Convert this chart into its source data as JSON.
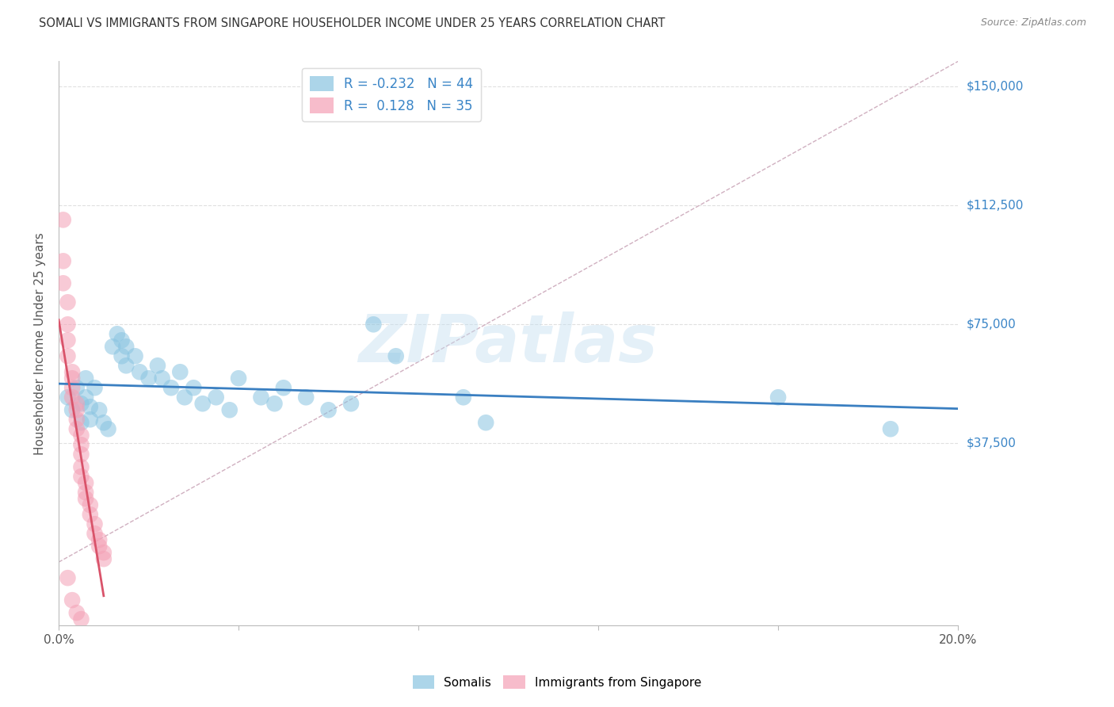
{
  "title": "SOMALI VS IMMIGRANTS FROM SINGAPORE HOUSEHOLDER INCOME UNDER 25 YEARS CORRELATION CHART",
  "source": "Source: ZipAtlas.com",
  "ylabel": "Householder Income Under 25 years",
  "xlim": [
    0,
    0.2
  ],
  "ylim": [
    -20000,
    158000
  ],
  "yticks": [
    37500,
    75000,
    112500,
    150000
  ],
  "ytick_labels": [
    "$37,500",
    "$75,000",
    "$112,500",
    "$150,000"
  ],
  "xticks": [
    0.0,
    0.04,
    0.08,
    0.12,
    0.16,
    0.2
  ],
  "xtick_labels": [
    "0.0%",
    "",
    "",
    "",
    "",
    "20.0%"
  ],
  "background_color": "#ffffff",
  "grid_color": "#e0e0e0",
  "watermark": "ZIPatlas",
  "blue_color": "#89c4e1",
  "pink_color": "#f4a0b5",
  "blue_line_color": "#3a7fc1",
  "pink_line_color": "#d9536a",
  "dashed_line_color": "#d0b0c0",
  "somali_R": -0.232,
  "singapore_R": 0.128,
  "somali_N": 44,
  "singapore_N": 35,
  "somali_points": [
    [
      0.002,
      52000
    ],
    [
      0.003,
      48000
    ],
    [
      0.004,
      55000
    ],
    [
      0.005,
      50000
    ],
    [
      0.005,
      44000
    ],
    [
      0.006,
      58000
    ],
    [
      0.006,
      52000
    ],
    [
      0.007,
      49000
    ],
    [
      0.007,
      45000
    ],
    [
      0.008,
      55000
    ],
    [
      0.009,
      48000
    ],
    [
      0.01,
      44000
    ],
    [
      0.011,
      42000
    ],
    [
      0.012,
      68000
    ],
    [
      0.013,
      72000
    ],
    [
      0.014,
      70000
    ],
    [
      0.014,
      65000
    ],
    [
      0.015,
      68000
    ],
    [
      0.015,
      62000
    ],
    [
      0.017,
      65000
    ],
    [
      0.018,
      60000
    ],
    [
      0.02,
      58000
    ],
    [
      0.022,
      62000
    ],
    [
      0.023,
      58000
    ],
    [
      0.025,
      55000
    ],
    [
      0.027,
      60000
    ],
    [
      0.028,
      52000
    ],
    [
      0.03,
      55000
    ],
    [
      0.032,
      50000
    ],
    [
      0.035,
      52000
    ],
    [
      0.038,
      48000
    ],
    [
      0.04,
      58000
    ],
    [
      0.045,
      52000
    ],
    [
      0.048,
      50000
    ],
    [
      0.05,
      55000
    ],
    [
      0.055,
      52000
    ],
    [
      0.06,
      48000
    ],
    [
      0.065,
      50000
    ],
    [
      0.07,
      75000
    ],
    [
      0.075,
      65000
    ],
    [
      0.09,
      52000
    ],
    [
      0.095,
      44000
    ],
    [
      0.16,
      52000
    ],
    [
      0.185,
      42000
    ]
  ],
  "singapore_points": [
    [
      0.001,
      108000
    ],
    [
      0.001,
      95000
    ],
    [
      0.001,
      88000
    ],
    [
      0.002,
      82000
    ],
    [
      0.002,
      75000
    ],
    [
      0.002,
      70000
    ],
    [
      0.002,
      65000
    ],
    [
      0.003,
      60000
    ],
    [
      0.003,
      58000
    ],
    [
      0.003,
      55000
    ],
    [
      0.003,
      52000
    ],
    [
      0.004,
      50000
    ],
    [
      0.004,
      48000
    ],
    [
      0.004,
      45000
    ],
    [
      0.004,
      42000
    ],
    [
      0.005,
      40000
    ],
    [
      0.005,
      37000
    ],
    [
      0.005,
      34000
    ],
    [
      0.005,
      30000
    ],
    [
      0.005,
      27000
    ],
    [
      0.006,
      25000
    ],
    [
      0.006,
      22000
    ],
    [
      0.006,
      20000
    ],
    [
      0.007,
      18000
    ],
    [
      0.007,
      15000
    ],
    [
      0.008,
      12000
    ],
    [
      0.008,
      9000
    ],
    [
      0.009,
      7000
    ],
    [
      0.009,
      5000
    ],
    [
      0.01,
      3000
    ],
    [
      0.01,
      1000
    ],
    [
      0.002,
      -5000
    ],
    [
      0.003,
      -12000
    ],
    [
      0.004,
      -16000
    ],
    [
      0.005,
      -18000
    ]
  ]
}
